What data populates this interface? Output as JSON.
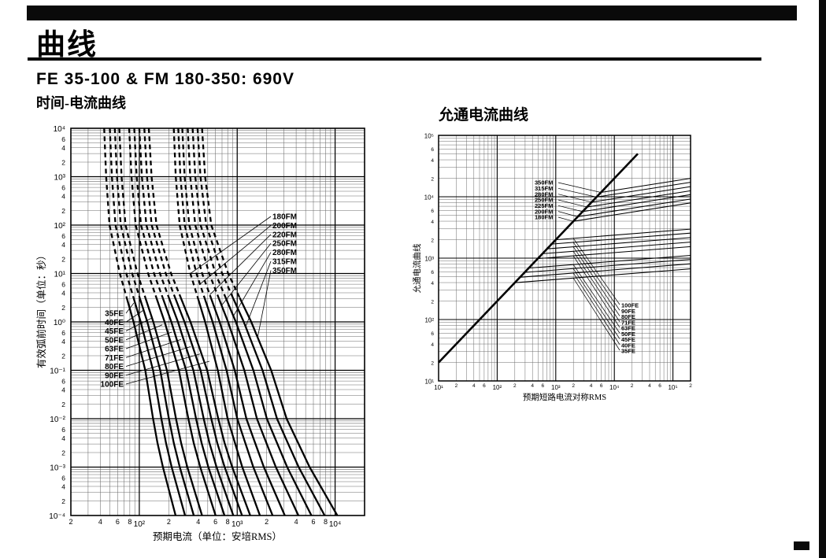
{
  "page": {
    "title": "曲线",
    "subtitle": "FE 35-100 & FM 180-350: 690V"
  },
  "chart_data": [
    {
      "type": "line",
      "title": "时间-电流曲线",
      "xlabel": "预期电流（单位：安培RMS）",
      "ylabel": "有效弧前时间（单位：秒）",
      "x_log_range": [
        1.301,
        4.301
      ],
      "y_log_range": [
        -4,
        4
      ],
      "x_major_labels": [
        "10²",
        "10³",
        "10⁴"
      ],
      "y_major_labels": [
        "10⁴",
        "10³",
        "10²",
        "10¹",
        "10⁰",
        "10⁻¹",
        "10⁻²",
        "10⁻³",
        "10⁻⁴"
      ],
      "x_minor_label_digits": [
        2,
        4,
        6,
        8
      ],
      "y_minor_label_digits": [
        6,
        4,
        2
      ],
      "grid": true,
      "dashed_above_logt": 0.5,
      "top_current_multiple": 1.25,
      "t_samples": [
        4,
        3,
        2,
        1,
        0.5,
        0,
        -1,
        -2,
        -2.5,
        -3,
        -4
      ],
      "families": [
        {
          "name": "FE",
          "fan": 0.42,
          "labels": [
            "35FE",
            "40FE",
            "45FE",
            "50FE",
            "63FE",
            "71FE",
            "80FE",
            "90FE",
            "100FE"
          ],
          "ratings": [
            35,
            40,
            45,
            50,
            63,
            71,
            80,
            90,
            100
          ],
          "deltas": [
            0,
            0.02,
            0.055,
            0.16,
            0.23,
            0.3,
            0.42,
            0.5,
            0.545,
            0.6,
            0.73
          ]
        },
        {
          "name": "FM",
          "fan": 0.57,
          "labels": [
            "180FM",
            "200FM",
            "220FM",
            "250FM",
            "280FM",
            "315FM",
            "350FM"
          ],
          "ratings": [
            180,
            200,
            220,
            250,
            280,
            315,
            350
          ],
          "deltas": [
            0,
            0.02,
            0.06,
            0.17,
            0.245,
            0.32,
            0.45,
            0.55,
            0.625,
            0.7,
            0.88
          ]
        }
      ]
    },
    {
      "type": "line",
      "title": "允通电流曲线",
      "xlabel": "预期短路电流对称RMS",
      "ylabel": "允通电流曲线",
      "x_log_range": [
        1,
        5.301
      ],
      "y_log_range": [
        1,
        5
      ],
      "x_major_labels": [
        "10¹",
        "10²",
        "10³",
        "10⁴",
        "10⁵"
      ],
      "y_major_labels": [
        "10⁵",
        "10⁴",
        "10³",
        "10²",
        "10¹"
      ],
      "x_minor_label_digits": [
        2,
        4,
        6
      ],
      "x_edge_minor_label": "2",
      "y_minor_label_digits": [
        6,
        4,
        2
      ],
      "grid": true,
      "diagonal": {
        "offset": 0.3,
        "end_logx": 4.4
      },
      "families": [
        {
          "name": "FM",
          "ratings": [
            180,
            200,
            225,
            250,
            280,
            315,
            350
          ],
          "branch_logx_start": 3.3,
          "branch_logx_span": 0.47,
          "slope": 0.15
        },
        {
          "name": "FE",
          "ratings": [
            35,
            40,
            45,
            50,
            63,
            71,
            80,
            90,
            100
          ],
          "branch_logx_start": 2.3,
          "branch_logx_span": 0.7,
          "slope": 0.075
        }
      ],
      "legend_fm": [
        "350FM",
        "315FM",
        "280FM",
        "250FM",
        "225FM",
        "200FM",
        "180FM"
      ],
      "legend_fe": [
        "100FE",
        "90FE",
        "80FE",
        "71FE",
        "63FE",
        "50FE",
        "45FE",
        "40FE",
        "35FE"
      ]
    }
  ]
}
